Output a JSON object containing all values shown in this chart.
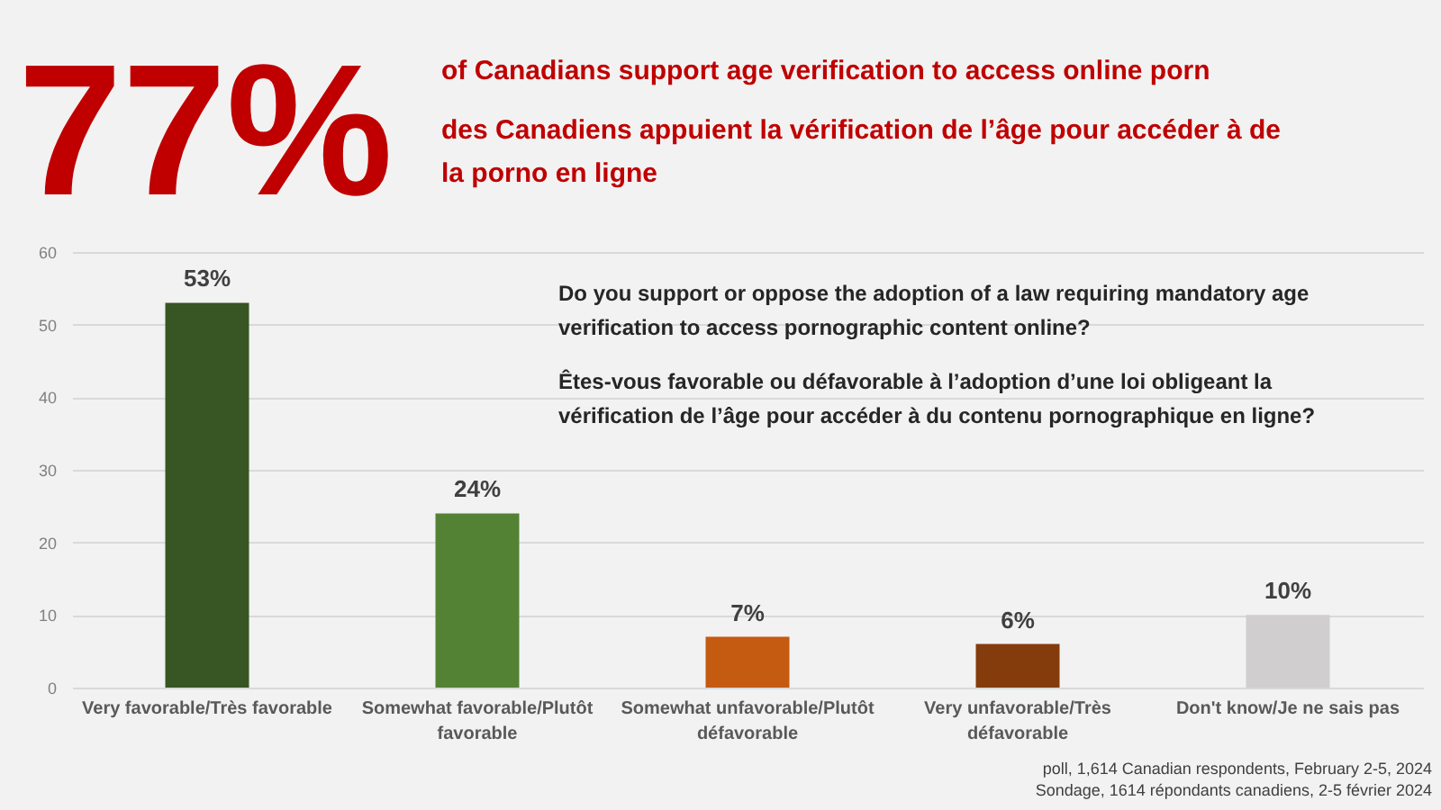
{
  "chart_data": {
    "type": "bar",
    "title": "77%",
    "subtitle": [
      "of Canadians support age verification to access online porn",
      "des Canadiens appuient la vérification de l’âge pour accéder à de la porno en ligne"
    ],
    "categories": [
      "Very favorable/Très favorable",
      "Somewhat favorable/Plutôt favorable",
      "Somewhat unfavorable/Plutôt défavorable",
      "Very unfavorable/Très défavorable",
      "Don't know/Je ne sais pas"
    ],
    "values": [
      53,
      24,
      7,
      6,
      10
    ],
    "colors": [
      "#375623",
      "#548235",
      "#c55a11",
      "#843c0c",
      "#d0cece"
    ],
    "value_labels": [
      "53%",
      "24%",
      "7%",
      "6%",
      "10%"
    ],
    "ylim": [
      0,
      60
    ],
    "yticks": [
      0,
      10,
      20,
      30,
      40,
      50,
      60
    ],
    "grid": "y",
    "annotations": [
      "Do you support or oppose the adoption of a law requiring mandatory age verification to access pornographic content online?",
      "Êtes-vous favorable ou défavorable à l’adoption d’une loi obligeant la vérification de l’âge pour accéder à du contenu pornographique en ligne?",
      "poll, 1,614 Canadian respondents, February 2-5, 2024",
      "Sondage, 1614 répondants canadiens, 2-5 février 2024"
    ]
  }
}
